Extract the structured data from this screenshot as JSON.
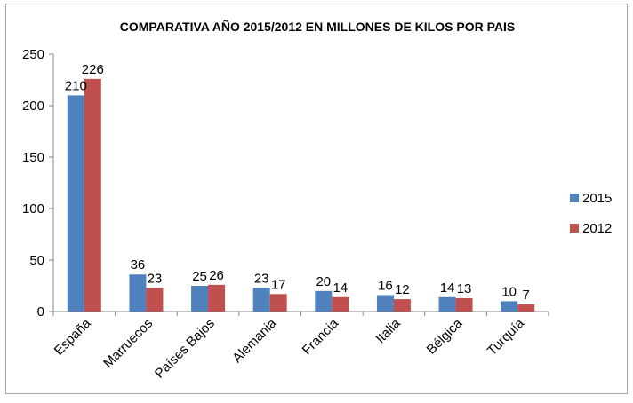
{
  "chart_data": {
    "type": "bar",
    "title": "COMPARATIVA AÑO 2015/2012 EN MILLONES DE KILOS POR PAIS",
    "xlabel": "",
    "ylabel": "",
    "categories": [
      "España",
      "Marruecos",
      "Países Bajos",
      "Alemania",
      "Francia",
      "Italia",
      "Bélgica",
      "Turquía"
    ],
    "series": [
      {
        "name": "2015",
        "values": [
          210,
          36,
          25,
          23,
          20,
          16,
          14,
          10
        ],
        "color": "#4f81bd"
      },
      {
        "name": "2012",
        "values": [
          226,
          23,
          26,
          17,
          14,
          12,
          13,
          7
        ],
        "color": "#c0504d"
      }
    ],
    "ylim": [
      0,
      250
    ],
    "yticks": [
      0,
      50,
      100,
      150,
      200,
      250
    ],
    "grid": false,
    "legend": "right",
    "data_labels": true
  }
}
